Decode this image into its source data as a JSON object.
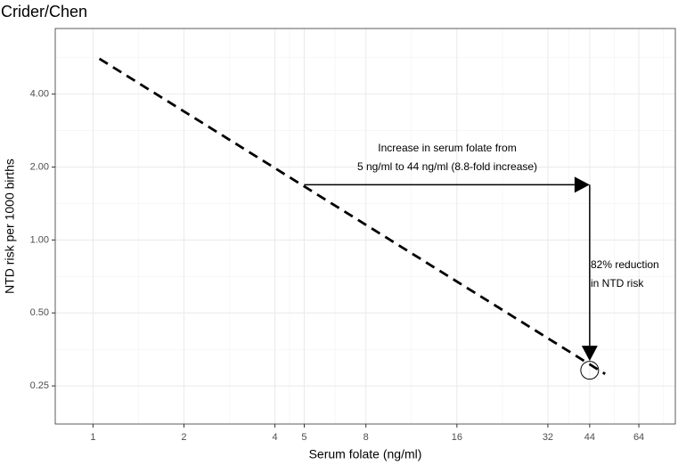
{
  "chart_data": {
    "type": "line",
    "title": "Crider/Chen",
    "x_label": "Serum folate (ng/ml)",
    "y_label": "NTD risk per 1000 births",
    "log_x": true,
    "log_y": true,
    "grid": true,
    "xlim": [
      0.75,
      84.5
    ],
    "ylim": [
      0.174,
      7.46
    ],
    "xticks": [
      1,
      2,
      4,
      5,
      8,
      16,
      32,
      44,
      64
    ],
    "yticks": [
      {
        "value": 0.25,
        "label": "0.25"
      },
      {
        "value": 0.5,
        "label": "0.50"
      },
      {
        "value": 1,
        "label": "1.00"
      },
      {
        "value": 2,
        "label": "2.00"
      },
      {
        "value": 4,
        "label": "4.00"
      }
    ],
    "series": [
      {
        "x": [
          1.05,
          49.5
        ],
        "values": [
          5.6,
          0.28
        ],
        "color": "#000000",
        "dashed": true
      }
    ],
    "arrows": [
      {
        "x": [
          5,
          44
        ],
        "y": [
          1.69,
          1.69
        ]
      },
      {
        "x": [
          44,
          44
        ],
        "y": [
          1.69,
          0.317
        ]
      }
    ],
    "point": {
      "x": 44,
      "y": 0.29
    },
    "annotations": [
      [
        "Increase in serum folate from",
        "5 ng/ml to 44 ng/ml (8.8-fold increase)"
      ],
      [
        "82% reduction",
        "in NTD risk"
      ]
    ]
  }
}
